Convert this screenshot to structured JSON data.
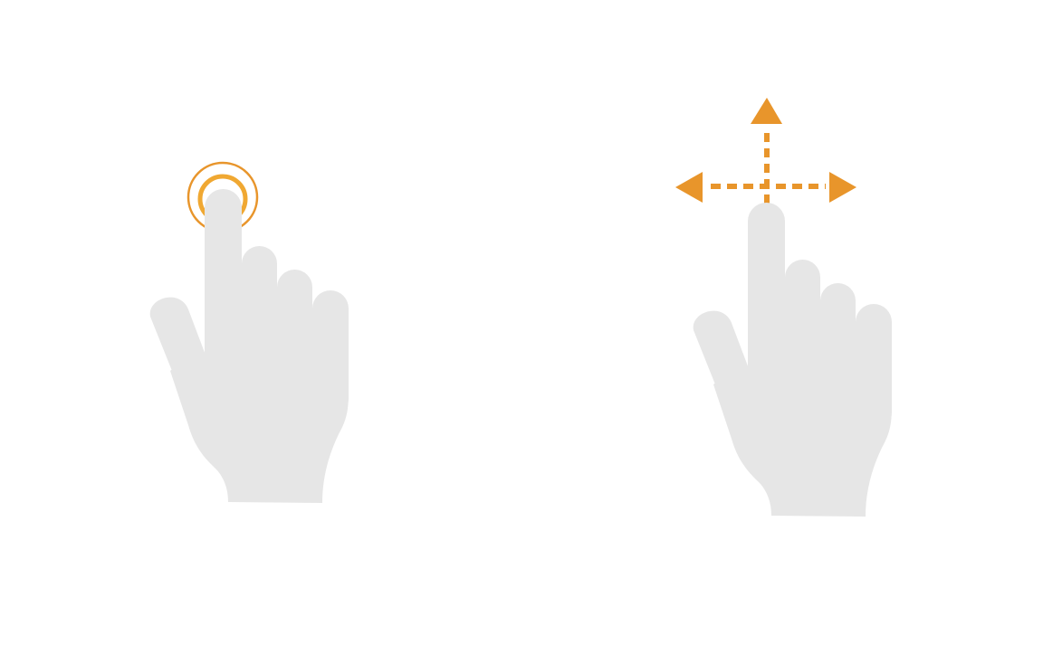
{
  "gestures": [
    {
      "name": "tap",
      "icon": "tap-gesture-icon"
    },
    {
      "name": "drag",
      "icon": "drag-gesture-icon"
    }
  ],
  "colors": {
    "background": "#ffffff",
    "hand": "#e6e6e6",
    "accent": "#e8952b",
    "tap_ring": "#f0a832"
  }
}
